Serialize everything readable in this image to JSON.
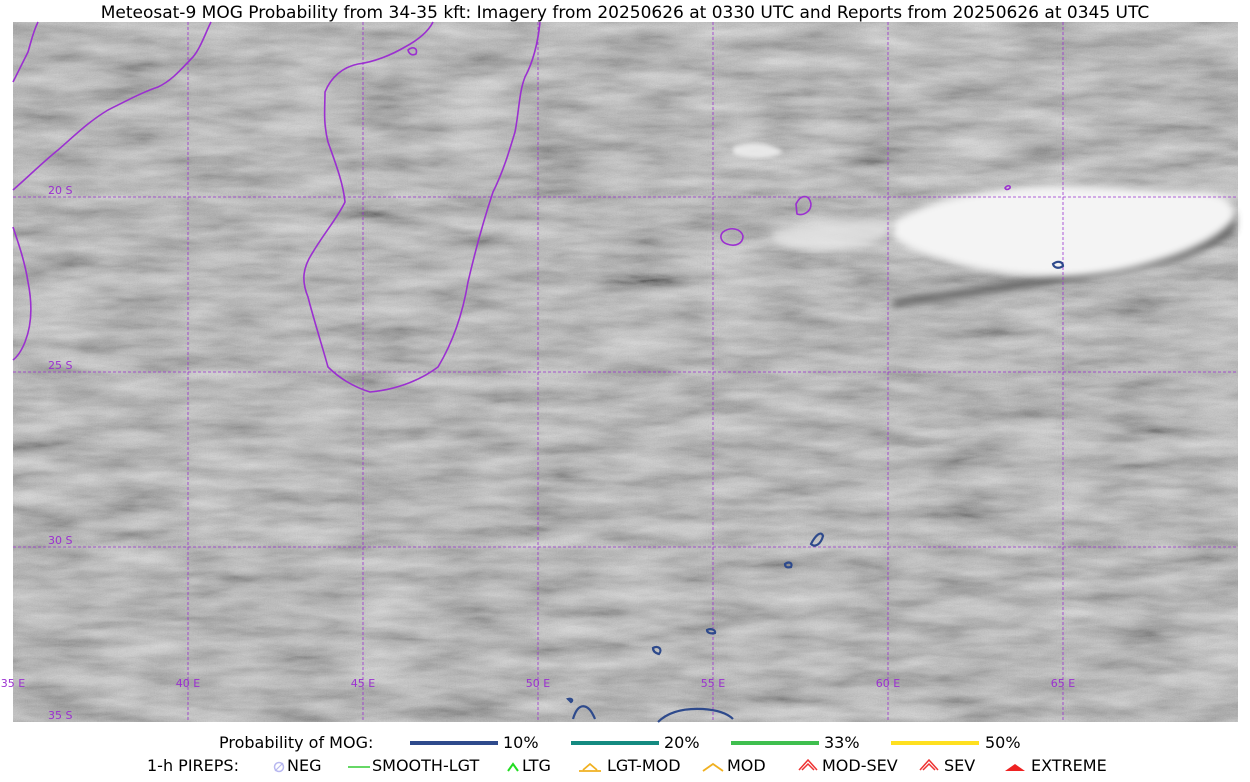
{
  "title": "Meteosat-9 MOG Probability from 34-35 kft: Imagery from 20250626 at 0330 UTC and Reports from 20250626 at 0345 UTC",
  "map": {
    "lat_labels": [
      "20 S",
      "25 S",
      "30 S",
      "35 S"
    ],
    "lon_labels": [
      "35 E",
      "40 E",
      "45 E",
      "50 E",
      "55 E",
      "60 E",
      "65 E"
    ],
    "grid_color": "#9b30d0",
    "coast_color": "#9b30d0",
    "contour_color": "#2e4a8c",
    "background": "grayscale satellite imagery"
  },
  "legend": {
    "probability": {
      "label": "Probability of MOG:",
      "items": [
        {
          "label": "10%",
          "color": "#2e4a8c"
        },
        {
          "label": "20%",
          "color": "#148a80"
        },
        {
          "label": "33%",
          "color": "#3fbf4f"
        },
        {
          "label": "50%",
          "color": "#ffe020"
        }
      ]
    },
    "pireps": {
      "label": "1-h PIREPS:",
      "items": [
        {
          "label": "NEG",
          "color": "#b8b8f0",
          "icon": "neg-circle-icon"
        },
        {
          "label": "SMOOTH-LGT",
          "color": "#33cc33",
          "icon": "line-icon"
        },
        {
          "label": "LTG",
          "color": "#22dd22",
          "icon": "caret-icon"
        },
        {
          "label": "LGT-MOD",
          "color": "#f0b020",
          "icon": "caret-bar-icon"
        },
        {
          "label": "MOD",
          "color": "#f0b020",
          "icon": "caret-icon"
        },
        {
          "label": "MOD-SEV",
          "color": "#ee3333",
          "icon": "double-caret-icon"
        },
        {
          "label": "SEV",
          "color": "#ee3333",
          "icon": "double-caret-icon"
        },
        {
          "label": "EXTREME",
          "color": "#ee2222",
          "icon": "filled-caret-icon"
        }
      ]
    }
  }
}
